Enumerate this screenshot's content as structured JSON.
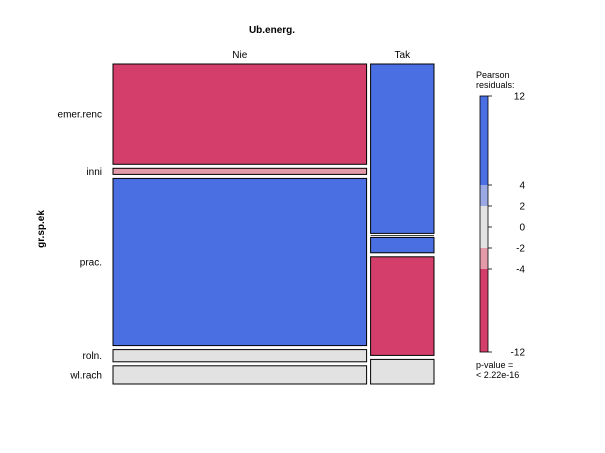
{
  "chart_data": {
    "type": "mosaic",
    "title": "Ub.energ.",
    "x_variable": "Ub.energ.",
    "y_variable": "gr.sp.ek",
    "columns": [
      "Nie",
      "Tak"
    ],
    "rows": [
      "emer.renc",
      "inni",
      "prac.",
      "roln.",
      "wl.rach"
    ],
    "column_shares": [
      0.8,
      0.2
    ],
    "cells": [
      {
        "row": "emer.renc",
        "column": "Nie",
        "share": 0.33,
        "shade": "strong-negative"
      },
      {
        "row": "inni",
        "column": "Nie",
        "share": 0.02,
        "shade": "weak-negative"
      },
      {
        "row": "prac.",
        "column": "Nie",
        "share": 0.55,
        "shade": "strong-positive"
      },
      {
        "row": "roln.",
        "column": "Nie",
        "share": 0.04,
        "shade": "neutral"
      },
      {
        "row": "wl.rach",
        "column": "Nie",
        "share": 0.06,
        "shade": "neutral"
      },
      {
        "row": "emer.renc",
        "column": "Tak",
        "share": 0.55,
        "shade": "strong-positive"
      },
      {
        "row": "inni",
        "column": "Tak",
        "share": 0.0,
        "shade": "neutral"
      },
      {
        "row": "prac.",
        "column": "Tak",
        "share": 0.05,
        "shade": "strong-positive"
      },
      {
        "row": "roln.",
        "column": "Tak",
        "share": 0.32,
        "shade": "strong-negative"
      },
      {
        "row": "wl.rach",
        "column": "Tak",
        "share": 0.08,
        "shade": "neutral"
      }
    ],
    "legend": {
      "title_line1": "Pearson",
      "title_line2": "residuals:",
      "ticks": [
        "12",
        "4",
        "2",
        "0",
        "-2",
        "-4",
        "-12"
      ],
      "p_value_line1": "p-value =",
      "p_value_line2": "< 2.22e-16"
    },
    "colors": {
      "strong-positive": "#4a6fe3",
      "weak-positive": "#9aa9e4",
      "neutral": "#e2e2e2",
      "weak-negative": "#e39aa9",
      "strong-negative": "#d33f6a",
      "border": "#000000"
    }
  }
}
